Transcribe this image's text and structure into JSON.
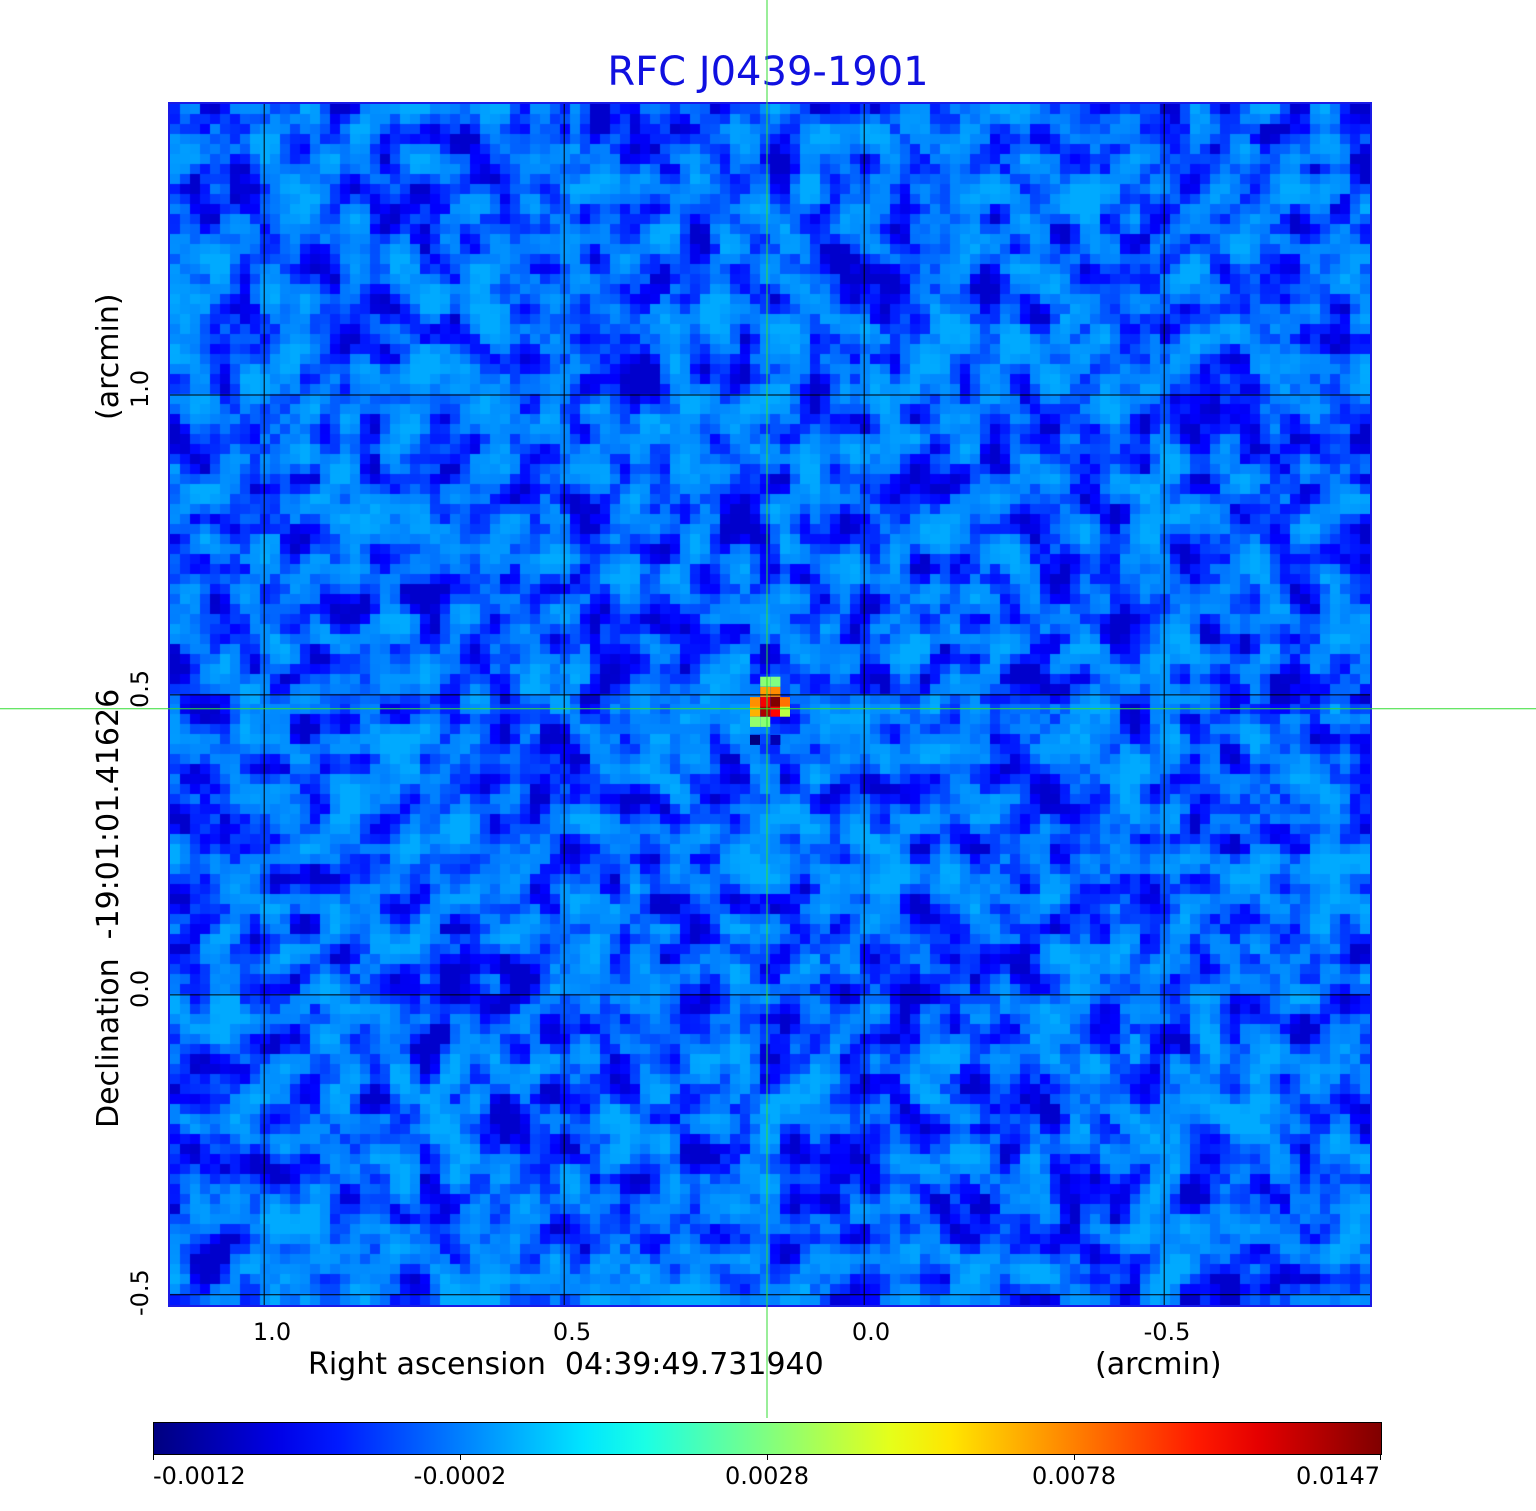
{
  "chart_data": {
    "type": "heatmap",
    "title": "RFC J0439-1901",
    "xlabel": "Right ascension  04:39:49.731940",
    "xunit": "(arcmin)",
    "ylabel": "Declination  -19:01:01.41626",
    "yunit": "(arcmin)",
    "xlim": [
      1.157,
      -0.843
    ],
    "ylim": [
      -0.517,
      1.485
    ],
    "xticks": [
      1.0,
      0.5,
      0.0,
      -0.5
    ],
    "xtick_labels": [
      "1.0",
      "0.5",
      "0.0",
      "-0.5"
    ],
    "yticks": [
      1.0,
      0.5,
      0.0,
      -0.5
    ],
    "ytick_labels": [
      "1.0",
      "0.5",
      "0.0",
      "-0.5"
    ],
    "grid": true,
    "crosshair": {
      "ra_offset": 0.162,
      "dec_offset": 0.477
    },
    "pixel_size_arcmin": 0.01667,
    "colormap": "jet",
    "colorbar": {
      "ticks": [
        -0.0012,
        -0.0002,
        0.0028,
        0.0078,
        0.0147
      ],
      "tick_labels": [
        "-0.0012",
        "-0.0002",
        "0.0028",
        "0.0078",
        "0.0147"
      ],
      "placement": "bottom"
    },
    "background_noise_range": [
      -0.0009,
      0.0003
    ],
    "source_pixels": [
      {
        "ra": 0.148,
        "dec": 0.488,
        "value": 0.0147
      },
      {
        "ra": 0.165,
        "dec": 0.488,
        "value": 0.0115
      },
      {
        "ra": 0.165,
        "dec": 0.472,
        "value": 0.0135
      },
      {
        "ra": 0.148,
        "dec": 0.472,
        "value": 0.0112
      },
      {
        "ra": 0.182,
        "dec": 0.488,
        "value": 0.0075
      },
      {
        "ra": 0.182,
        "dec": 0.472,
        "value": 0.0068
      },
      {
        "ra": 0.132,
        "dec": 0.488,
        "value": 0.0082
      },
      {
        "ra": 0.132,
        "dec": 0.472,
        "value": 0.004
      },
      {
        "ra": 0.165,
        "dec": 0.505,
        "value": 0.0072
      },
      {
        "ra": 0.148,
        "dec": 0.505,
        "value": 0.0076
      },
      {
        "ra": 0.165,
        "dec": 0.522,
        "value": 0.003
      },
      {
        "ra": 0.148,
        "dec": 0.522,
        "value": 0.0028
      },
      {
        "ra": 0.165,
        "dec": 0.455,
        "value": 0.003
      },
      {
        "ra": 0.182,
        "dec": 0.455,
        "value": 0.0032
      },
      {
        "ra": 0.182,
        "dec": 0.425,
        "value": -0.0012
      },
      {
        "ra": 0.148,
        "dec": 0.425,
        "value": -0.001
      }
    ]
  }
}
